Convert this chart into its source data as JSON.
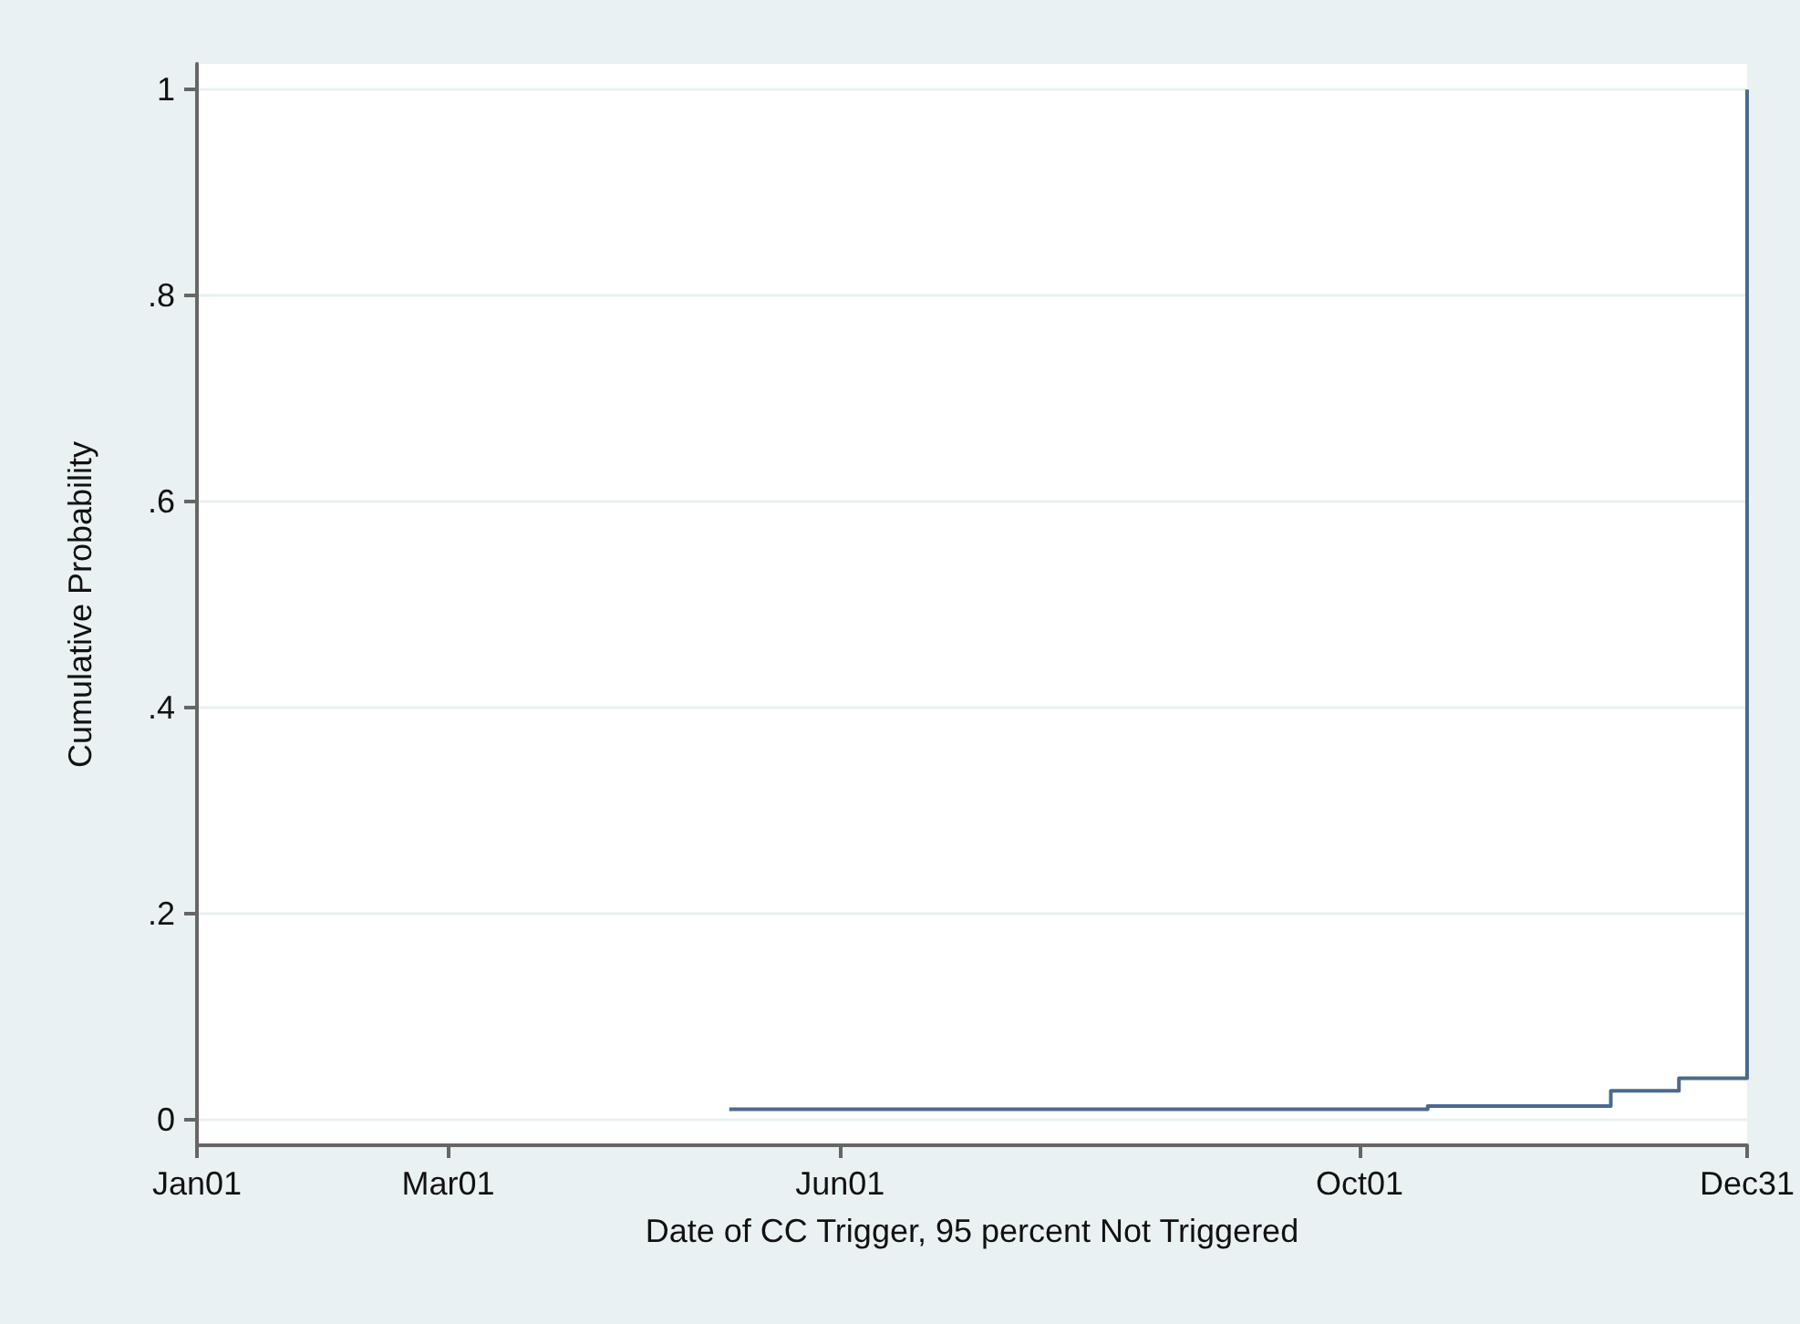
{
  "chart_data": {
    "type": "step",
    "xlabel": "Date of CC Trigger, 95 percent Not Triggered",
    "ylabel": "Cumulative Probability",
    "x": [
      "--05-06",
      "--10-17",
      "--11-29",
      "--12-15",
      "--12-31"
    ],
    "series": [
      {
        "color": "#4a6a8c",
        "values": [
          0.01,
          0.013,
          0.028,
          0.04,
          1
        ]
      }
    ],
    "xlim": [
      "--01-01",
      "--12-31"
    ],
    "xticks": [
      {
        "value": "--01-01",
        "label": "Jan01"
      },
      {
        "value": "--03-01",
        "label": "Mar01"
      },
      {
        "value": "--06-01",
        "label": "Jun01"
      },
      {
        "value": "--10-01",
        "label": "Oct01"
      },
      {
        "value": "--12-31",
        "label": "Dec31"
      }
    ],
    "ylim": [
      -0.025,
      1.025
    ],
    "yticks": [
      0,
      {
        "value": 0.2,
        "label": ".2"
      },
      {
        "value": 0.4,
        "label": ".4"
      },
      {
        "value": 0.6,
        "label": ".6"
      },
      {
        "value": 0.8,
        "label": ".8"
      },
      1
    ],
    "grid": "y",
    "marker": "none",
    "line_style": "solid"
  }
}
